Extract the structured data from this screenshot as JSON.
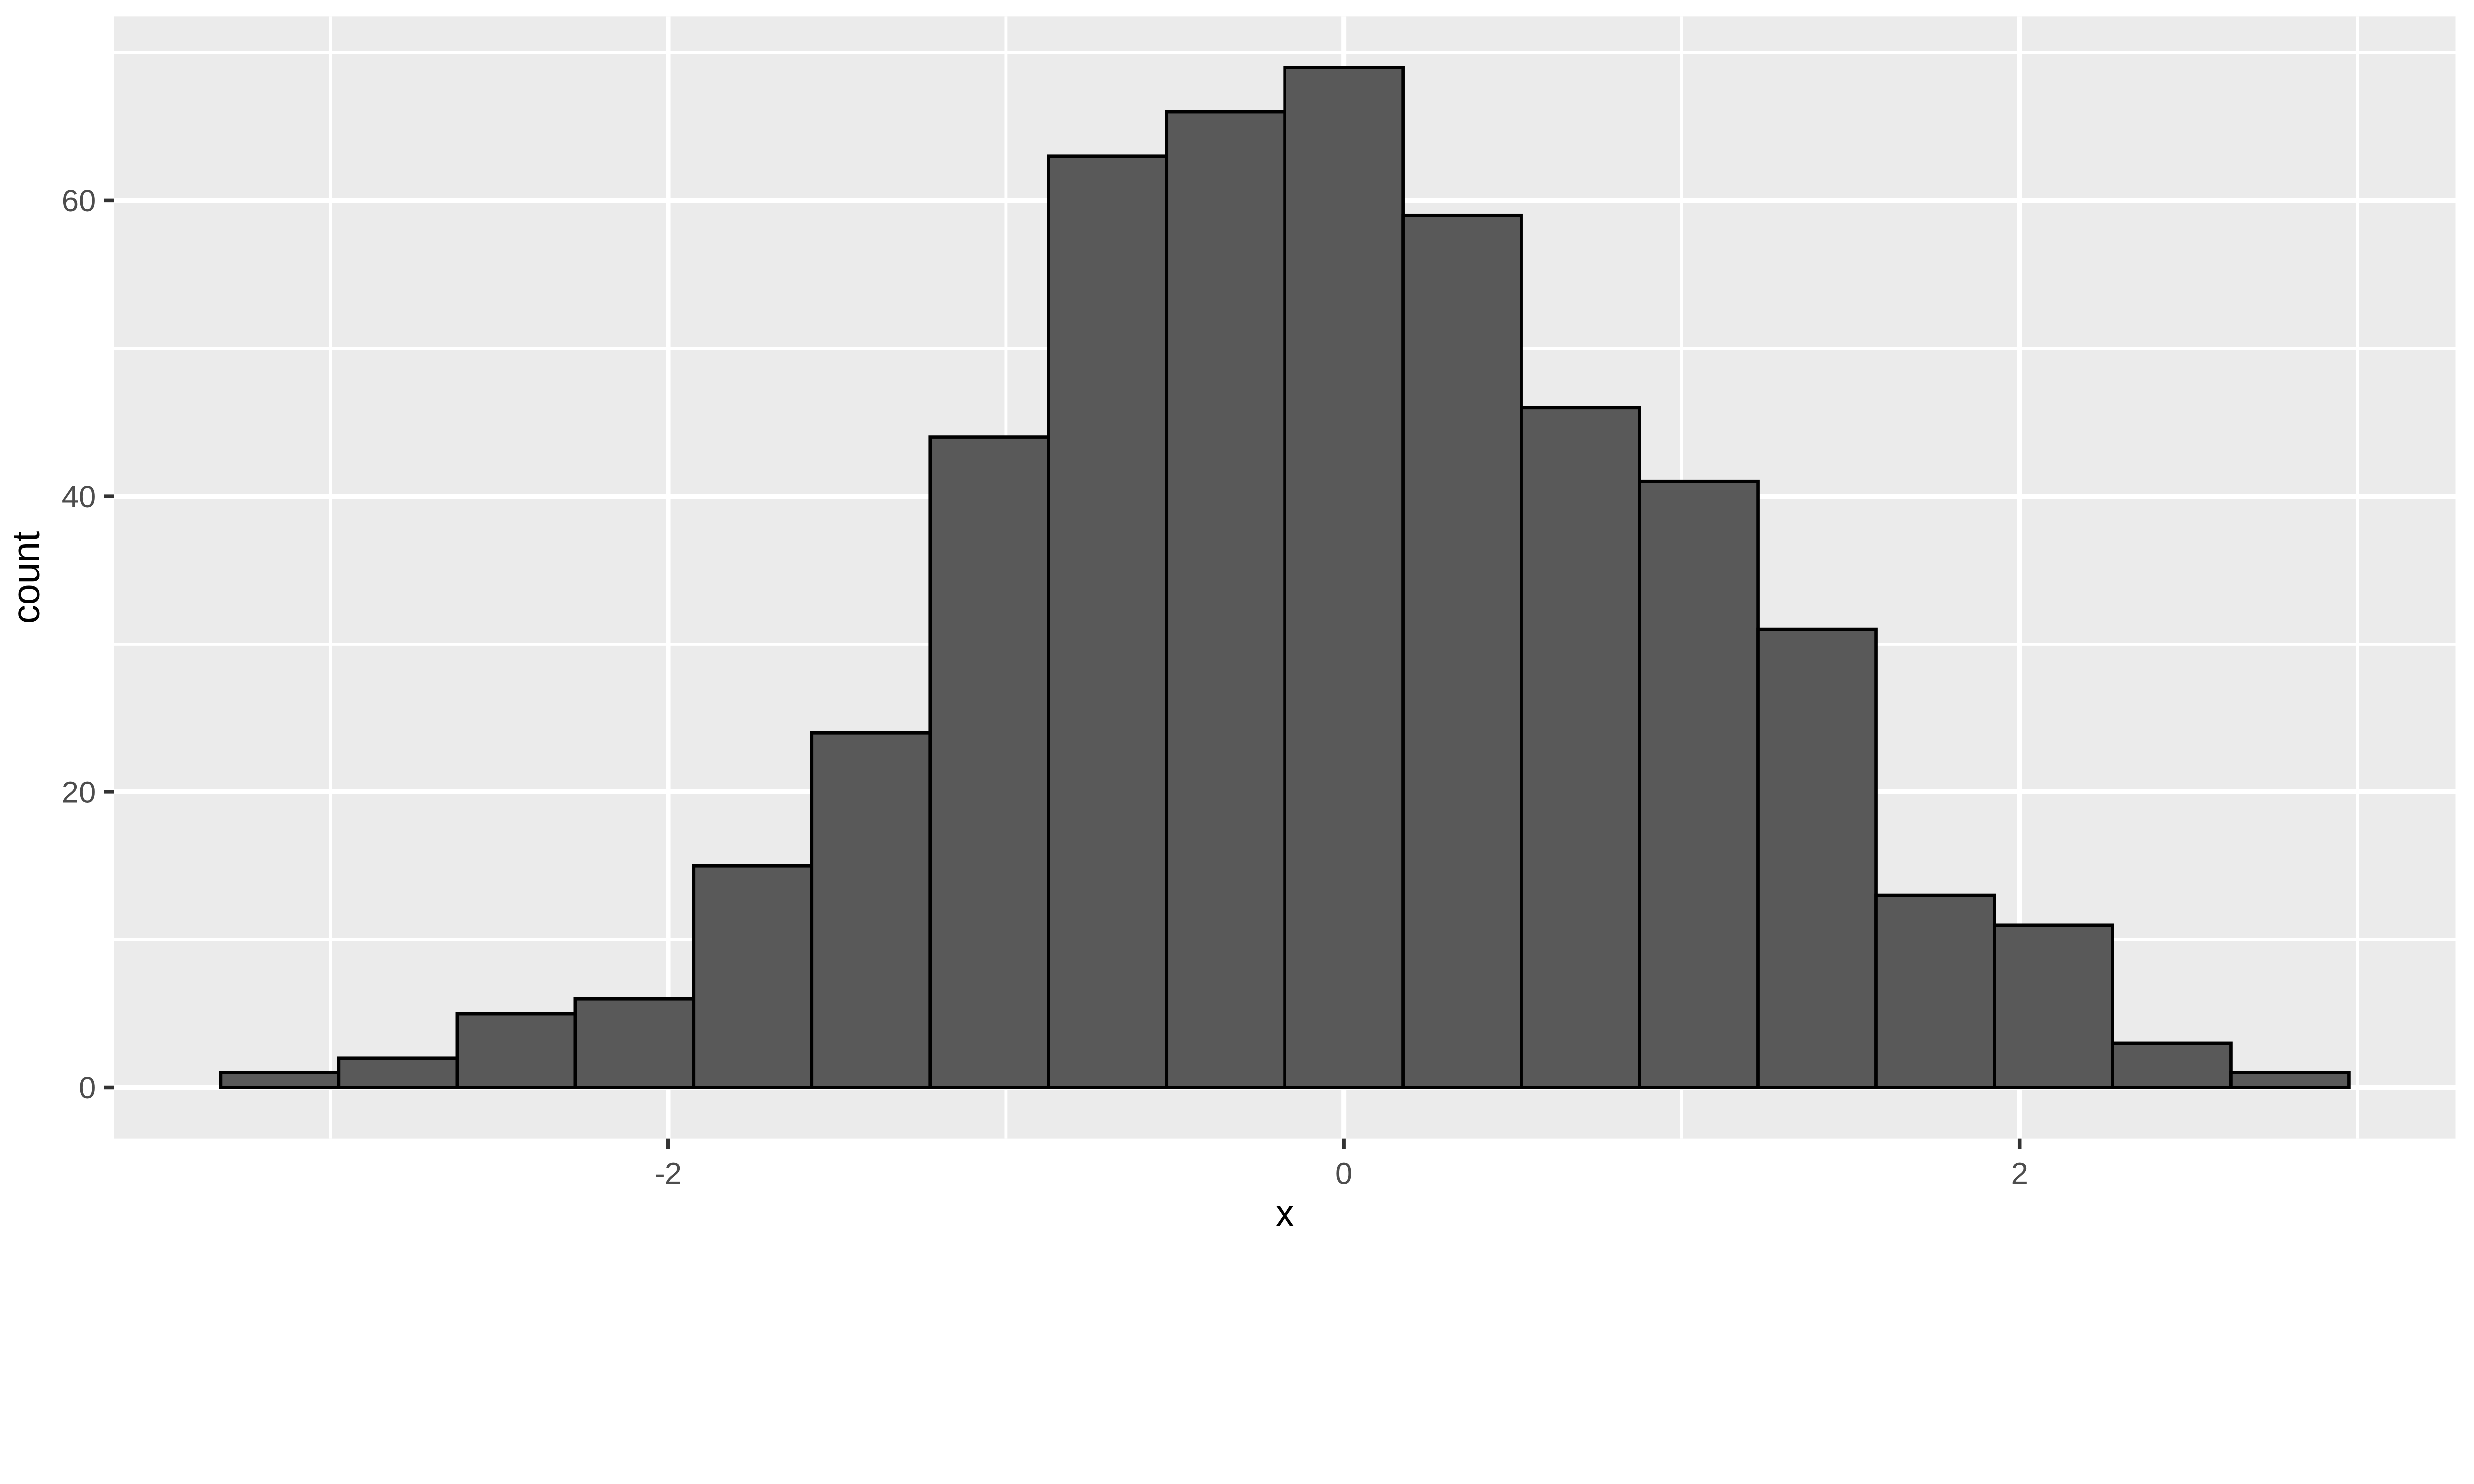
{
  "chart_data": {
    "type": "bar",
    "subtype": "histogram",
    "title": "",
    "xlabel": "x",
    "ylabel": "count",
    "bin_width": 0.35,
    "bin_centers": [
      -3.15,
      -2.8,
      -2.45,
      -2.1,
      -1.75,
      -1.4,
      -1.05,
      -0.7,
      -0.35,
      0,
      0.35,
      0.7,
      1.05,
      1.4,
      1.75,
      2.1,
      2.45,
      2.8
    ],
    "values": [
      1,
      2,
      5,
      6,
      15,
      24,
      44,
      63,
      66,
      69,
      59,
      46,
      41,
      31,
      13,
      11,
      3,
      1
    ],
    "total_n": 500,
    "x_major_ticks": [
      -2,
      0,
      2
    ],
    "x_major_tick_labels": [
      "-2",
      "0",
      "2"
    ],
    "x_minor_gridlines": [
      -3,
      -1,
      1,
      3
    ],
    "y_major_ticks": [
      0,
      20,
      40,
      60
    ],
    "y_major_tick_labels": [
      "0",
      "20",
      "40",
      "60"
    ],
    "y_minor_gridlines": [
      10,
      30,
      50,
      70
    ],
    "xlim": [
      -3.64,
      3.29
    ],
    "ylim": [
      -3.45,
      72.45
    ],
    "grid": "major+minor",
    "legend_position": "none"
  },
  "style": {
    "plot_background": "#ffffff",
    "panel_background": "#ebebeb",
    "gridline_color": "#ffffff",
    "bar_fill": "#595959",
    "bar_stroke": "#000000",
    "tick_mark_color": "#333333",
    "tick_label_color": "#4d4d4d",
    "axis_title_color": "#000000"
  }
}
